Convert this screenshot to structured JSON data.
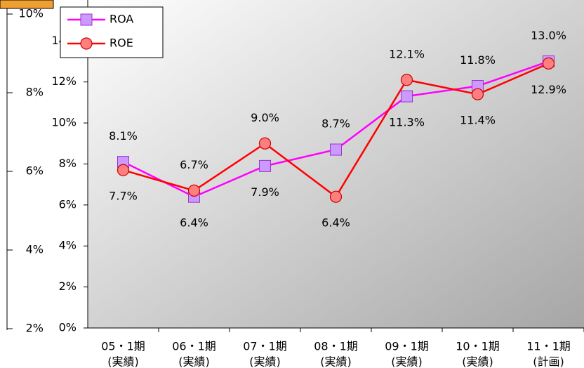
{
  "chart_data": {
    "type": "line",
    "categories": [
      [
        "05・1期",
        "(実績)"
      ],
      [
        "06・1期",
        "(実績)"
      ],
      [
        "07・1期",
        "(実績)"
      ],
      [
        "08・1期",
        "(実績)"
      ],
      [
        "09・1期",
        "(実績)"
      ],
      [
        "10・1期",
        "(実績)"
      ],
      [
        "11・1期",
        "(計画)"
      ]
    ],
    "series": [
      {
        "name": "ROA",
        "color": "#ff00ff",
        "marker_fill": "#cc99ff",
        "marker_stroke": "#9933cc",
        "marker": "square",
        "values": [
          8.1,
          6.4,
          7.9,
          8.7,
          11.3,
          11.8,
          13.0
        ],
        "value_labels": [
          "8.1%",
          "6.4%",
          "7.9%",
          "8.7%",
          "11.3%",
          "11.8%",
          "13.0%"
        ]
      },
      {
        "name": "ROE",
        "color": "#ff0000",
        "marker_fill": "#ff7f7f",
        "marker_stroke": "#cc0000",
        "marker": "circle",
        "values": [
          7.7,
          6.7,
          9.0,
          6.4,
          12.1,
          11.4,
          12.9
        ],
        "value_labels": [
          "7.7%",
          "6.7%",
          "9.0%",
          "6.4%",
          "12.1%",
          "11.4%",
          "12.9%"
        ]
      }
    ],
    "ylim": [
      0,
      14
    ],
    "yticks": [
      {
        "value": 0,
        "label": "0%"
      },
      {
        "value": 2,
        "label": "2%"
      },
      {
        "value": 4,
        "label": "4%"
      },
      {
        "value": 6,
        "label": "6%"
      },
      {
        "value": 8,
        "label": "8%"
      },
      {
        "value": 10,
        "label": "10%"
      },
      {
        "value": 12,
        "label": "12%"
      },
      {
        "value": 14,
        "label": "14%"
      }
    ],
    "legend": "top-left"
  },
  "back_axis": {
    "ylim": [
      2,
      10
    ],
    "yticks": [
      {
        "value": 2,
        "label": "2%"
      },
      {
        "value": 4,
        "label": "4%"
      },
      {
        "value": 6,
        "label": "6%"
      },
      {
        "value": 8,
        "label": "8%"
      },
      {
        "value": 10,
        "label": "10%"
      }
    ]
  }
}
